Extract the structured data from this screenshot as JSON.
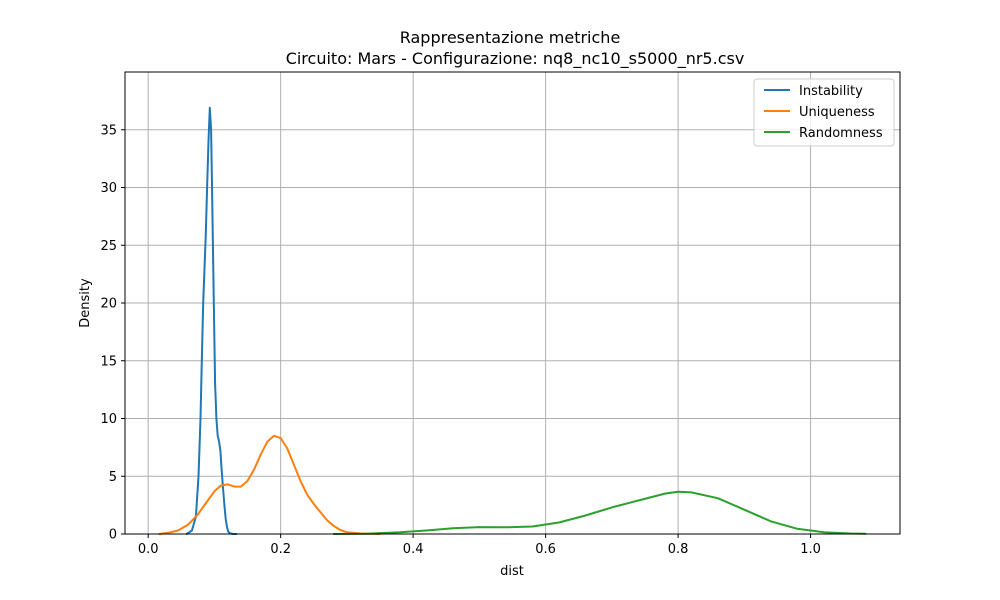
{
  "chart_data": {
    "type": "line",
    "title": "Rappresentazione metriche",
    "subtitle": "Circuito: Mars - Configurazione: nq8_nc10_s5000_nr5.csv",
    "xlabel": "dist",
    "ylabel": "Density",
    "xlim": [
      -0.035,
      1.135
    ],
    "ylim": [
      0,
      40
    ],
    "xticks": [
      "0.0",
      "0.2",
      "0.4",
      "0.6",
      "0.8",
      "1.0"
    ],
    "xtick_values": [
      0.0,
      0.2,
      0.4,
      0.6,
      0.8,
      1.0
    ],
    "yticks": [
      "0",
      "5",
      "10",
      "15",
      "20",
      "25",
      "30",
      "35"
    ],
    "ytick_values": [
      0,
      5,
      10,
      15,
      20,
      25,
      30,
      35
    ],
    "grid": true,
    "legend_position": "top-right",
    "series": [
      {
        "name": "Instability",
        "color": "#1f77b4",
        "x": [
          0.058,
          0.066,
          0.072,
          0.076,
          0.079,
          0.081,
          0.083,
          0.085,
          0.087,
          0.089,
          0.091,
          0.093,
          0.095,
          0.097,
          0.099,
          0.101,
          0.103,
          0.105,
          0.107,
          0.109,
          0.111,
          0.113,
          0.115,
          0.117,
          0.119,
          0.121,
          0.124,
          0.128,
          0.133
        ],
        "y": [
          0,
          0.3,
          1.5,
          5,
          10,
          15,
          20,
          23,
          26,
          30,
          34,
          36.9,
          35,
          28,
          20,
          13,
          10,
          8.5,
          8,
          7.2,
          5.5,
          4.0,
          2.5,
          1.3,
          0.6,
          0.2,
          0.05,
          0,
          0
        ]
      },
      {
        "name": "Uniqueness",
        "color": "#ff7f0e",
        "x": [
          0.017,
          0.03,
          0.045,
          0.06,
          0.075,
          0.09,
          0.1,
          0.11,
          0.12,
          0.13,
          0.14,
          0.15,
          0.16,
          0.17,
          0.18,
          0.19,
          0.2,
          0.21,
          0.22,
          0.23,
          0.24,
          0.25,
          0.26,
          0.27,
          0.28,
          0.29,
          0.3,
          0.32,
          0.34,
          0.35
        ],
        "y": [
          0,
          0.1,
          0.3,
          0.8,
          1.7,
          2.9,
          3.7,
          4.2,
          4.3,
          4.1,
          4.1,
          4.6,
          5.6,
          6.9,
          8.0,
          8.5,
          8.3,
          7.4,
          6.0,
          4.6,
          3.4,
          2.6,
          1.9,
          1.2,
          0.7,
          0.35,
          0.15,
          0.05,
          0.01,
          0
        ]
      },
      {
        "name": "Randomness",
        "color": "#2ca02c",
        "x": [
          0.28,
          0.33,
          0.38,
          0.42,
          0.46,
          0.5,
          0.54,
          0.58,
          0.62,
          0.66,
          0.7,
          0.74,
          0.78,
          0.8,
          0.82,
          0.86,
          0.9,
          0.94,
          0.98,
          1.02,
          1.06,
          1.083
        ],
        "y": [
          0,
          0.03,
          0.15,
          0.3,
          0.5,
          0.6,
          0.58,
          0.65,
          1.0,
          1.6,
          2.3,
          2.9,
          3.5,
          3.65,
          3.6,
          3.1,
          2.1,
          1.1,
          0.45,
          0.15,
          0.04,
          0.02
        ]
      }
    ]
  }
}
